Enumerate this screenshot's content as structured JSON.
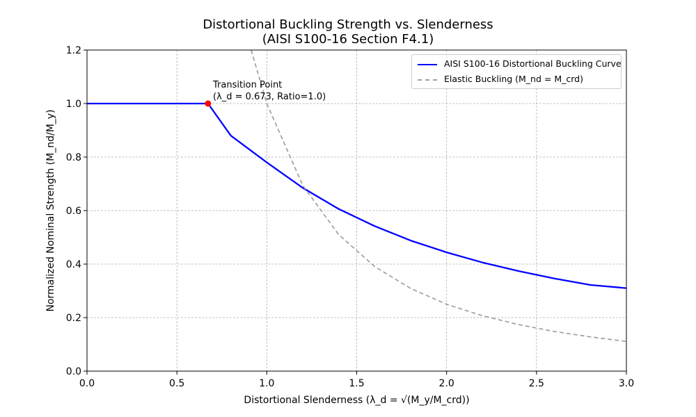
{
  "chart_data": {
    "type": "line",
    "title": "Distortional Buckling Strength vs. Slenderness",
    "subtitle": "(AISI S100-16 Section F4.1)",
    "xlabel": "Distortional Slenderness (λ_d = √(M_y/M_crd))",
    "ylabel": "Normalized Nominal Strength (M_nd/M_y)",
    "xlim": [
      0.0,
      3.0
    ],
    "ylim": [
      0.0,
      1.2
    ],
    "xticks": [
      "0.0",
      "0.5",
      "1.0",
      "1.5",
      "2.0",
      "2.5",
      "3.0"
    ],
    "yticks": [
      "0.0",
      "0.2",
      "0.4",
      "0.6",
      "0.8",
      "1.0",
      "1.2"
    ],
    "grid": true,
    "legend_position": "top-right",
    "series": [
      {
        "name": "AISI S100-16 Distortional Buckling Curve",
        "style": "solid",
        "color": "#0000ff",
        "x": [
          0.0,
          0.3,
          0.5,
          0.673,
          0.8,
          1.0,
          1.2,
          1.4,
          1.6,
          1.8,
          2.0,
          2.2,
          2.4,
          2.6,
          2.8,
          3.0
        ],
        "y": [
          1.0,
          1.0,
          1.0,
          1.0,
          0.88,
          0.78,
          0.685,
          0.606,
          0.542,
          0.488,
          0.444,
          0.406,
          0.374,
          0.346,
          0.322,
          0.31
        ]
      },
      {
        "name": "Elastic Buckling (M_nd = M_crd)",
        "style": "dashed",
        "color": "#a0a0a0",
        "x": [
          0.913,
          1.0,
          1.2,
          1.4,
          1.6,
          1.8,
          2.0,
          2.2,
          2.4,
          2.6,
          2.8,
          3.0
        ],
        "y": [
          1.2,
          1.0,
          0.694,
          0.51,
          0.391,
          0.309,
          0.25,
          0.207,
          0.174,
          0.148,
          0.128,
          0.111
        ]
      }
    ],
    "marker": {
      "x": 0.673,
      "y": 1.0,
      "color": "#ff0000"
    },
    "annotation": {
      "line1": "Transition Point",
      "line2": "(λ_d = 0.673, Ratio=1.0)"
    }
  }
}
